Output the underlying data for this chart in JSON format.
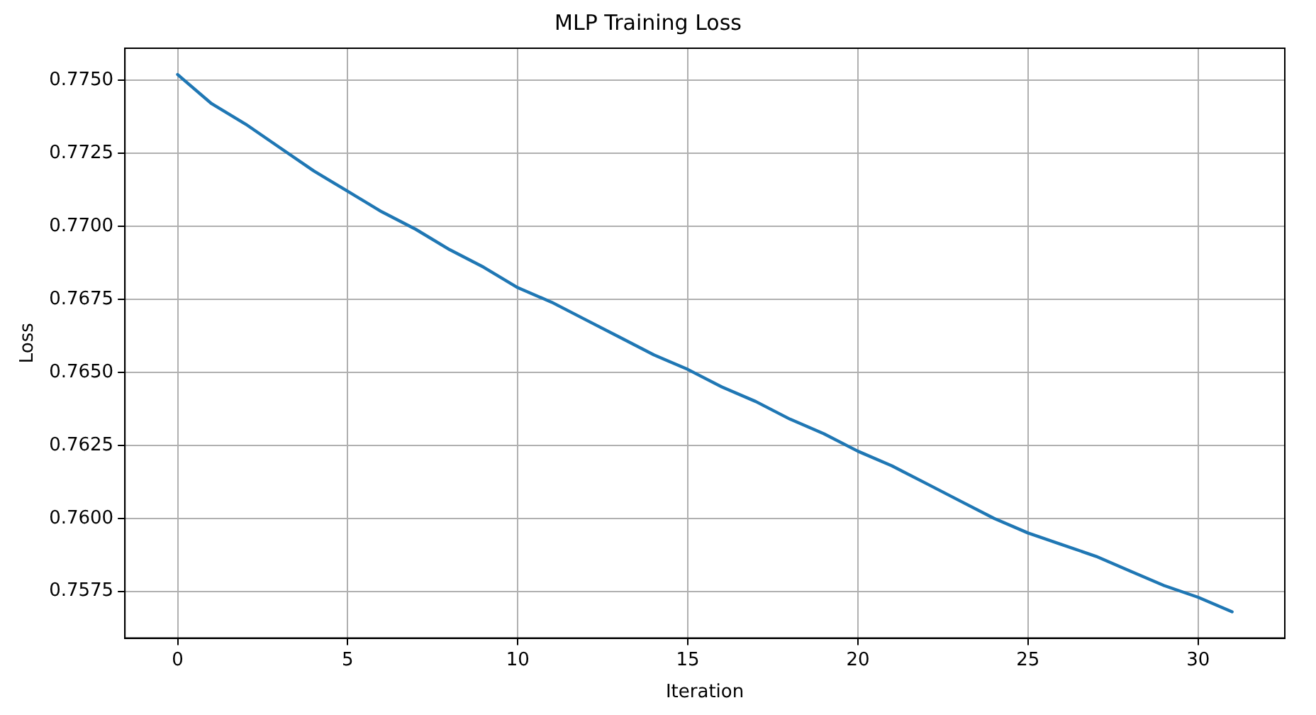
{
  "chart_data": {
    "type": "line",
    "title": "MLP Training Loss",
    "xlabel": "Iteration",
    "ylabel": "Loss",
    "x": [
      0,
      1,
      2,
      3,
      4,
      5,
      6,
      7,
      8,
      9,
      10,
      11,
      12,
      13,
      14,
      15,
      16,
      17,
      18,
      19,
      20,
      21,
      22,
      23,
      24,
      25,
      26,
      27,
      28,
      29,
      30,
      31
    ],
    "series": [
      {
        "color": "#1f77b4",
        "values": [
          0.7752,
          0.7742,
          0.7735,
          0.7727,
          0.7719,
          0.7712,
          0.7705,
          0.7699,
          0.7692,
          0.7686,
          0.7679,
          0.7674,
          0.7668,
          0.7662,
          0.7656,
          0.7651,
          0.7645,
          0.764,
          0.7634,
          0.7629,
          0.7623,
          0.7618,
          0.7612,
          0.7606,
          0.76,
          0.7595,
          0.7591,
          0.7587,
          0.7582,
          0.7577,
          0.7573,
          0.7568
        ]
      }
    ],
    "xlim": [
      -1.55,
      32.55
    ],
    "xticks": [
      0,
      5,
      10,
      15,
      20,
      25,
      30
    ],
    "ylim": [
      0.7559,
      0.7761
    ],
    "yticks": [
      {
        "value": 0.7575,
        "label": "0.7575"
      },
      {
        "value": 0.76,
        "label": "0.7600"
      },
      {
        "value": 0.7625,
        "label": "0.7625"
      },
      {
        "value": 0.765,
        "label": "0.7650"
      },
      {
        "value": 0.7675,
        "label": "0.7675"
      },
      {
        "value": 0.77,
        "label": "0.7700"
      },
      {
        "value": 0.7725,
        "label": "0.7725"
      },
      {
        "value": 0.775,
        "label": "0.7750"
      }
    ],
    "grid": true,
    "legend": false,
    "marker": "none",
    "line_style": "solid"
  }
}
